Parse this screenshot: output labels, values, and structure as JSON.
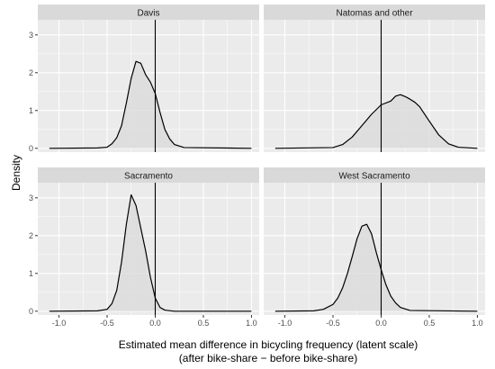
{
  "chart_data": {
    "type": "area",
    "ylabel": "Density",
    "xlabel_line1": "Estimated mean difference in bicycling frequency (latent scale)",
    "xlabel_line2": "(after bike-share − before bike-share)",
    "xlim": [
      -1.22,
      1.08
    ],
    "ylim": [
      -0.1,
      3.4
    ],
    "x_ticks": [
      -1.0,
      -0.5,
      0.0,
      0.5,
      1.0
    ],
    "x_tick_labels": [
      "-1.0",
      "-0.5",
      "0.0",
      "0.5",
      "1.0"
    ],
    "y_ticks": [
      0,
      1,
      2,
      3
    ],
    "y_tick_labels": [
      "0",
      "1",
      "2",
      "3"
    ],
    "grid": true,
    "reference_line_x": 0.0,
    "colors": {
      "panel_background": "#ebebeb",
      "strip_background": "#d9d9d9",
      "grid_major": "#ffffff",
      "density_fill": "#d9d9d9",
      "density_line": "#000000"
    },
    "panels": [
      {
        "name": "Davis",
        "x": [
          -1.1,
          -0.6,
          -0.5,
          -0.45,
          -0.4,
          -0.35,
          -0.3,
          -0.25,
          -0.2,
          -0.15,
          -0.1,
          -0.05,
          0.0,
          0.05,
          0.1,
          0.15,
          0.2,
          0.3,
          1.0
        ],
        "density": [
          0.0,
          0.01,
          0.03,
          0.12,
          0.28,
          0.6,
          1.2,
          1.85,
          2.3,
          2.25,
          1.95,
          1.75,
          1.45,
          0.95,
          0.5,
          0.25,
          0.1,
          0.02,
          0.0
        ]
      },
      {
        "name": "Natomas and other",
        "x": [
          -1.1,
          -0.5,
          -0.4,
          -0.3,
          -0.2,
          -0.1,
          0.0,
          0.1,
          0.15,
          0.2,
          0.25,
          0.3,
          0.35,
          0.4,
          0.5,
          0.6,
          0.7,
          0.8,
          1.0
        ],
        "density": [
          0.0,
          0.02,
          0.1,
          0.3,
          0.6,
          0.9,
          1.15,
          1.25,
          1.38,
          1.42,
          1.37,
          1.3,
          1.22,
          1.1,
          0.72,
          0.35,
          0.12,
          0.03,
          0.0
        ]
      },
      {
        "name": "Sacramento",
        "x": [
          -1.1,
          -0.6,
          -0.5,
          -0.45,
          -0.4,
          -0.35,
          -0.3,
          -0.25,
          -0.2,
          -0.15,
          -0.1,
          -0.05,
          0.0,
          0.05,
          0.1,
          0.2,
          1.0
        ],
        "density": [
          0.0,
          0.01,
          0.05,
          0.2,
          0.55,
          1.3,
          2.3,
          3.08,
          2.8,
          2.2,
          1.6,
          0.9,
          0.35,
          0.1,
          0.03,
          0.0,
          0.0
        ]
      },
      {
        "name": "West Sacramento",
        "x": [
          -1.1,
          -0.7,
          -0.6,
          -0.5,
          -0.45,
          -0.4,
          -0.35,
          -0.3,
          -0.25,
          -0.2,
          -0.15,
          -0.1,
          -0.05,
          0.0,
          0.05,
          0.1,
          0.15,
          0.2,
          0.3,
          1.0
        ],
        "density": [
          0.0,
          0.01,
          0.05,
          0.18,
          0.35,
          0.62,
          1.0,
          1.45,
          1.92,
          2.25,
          2.3,
          2.05,
          1.55,
          1.1,
          0.7,
          0.4,
          0.22,
          0.1,
          0.02,
          0.0
        ]
      }
    ]
  }
}
